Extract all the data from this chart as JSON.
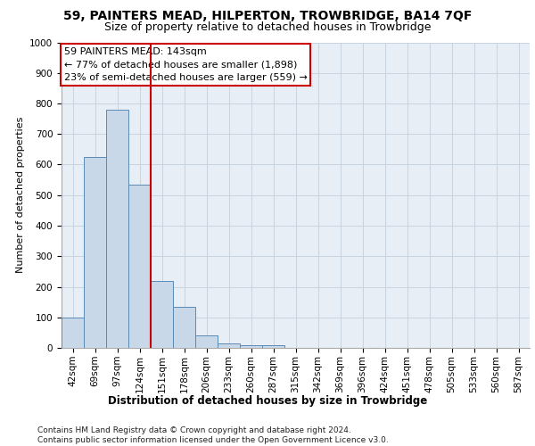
{
  "title1": "59, PAINTERS MEAD, HILPERTON, TROWBRIDGE, BA14 7QF",
  "title2": "Size of property relative to detached houses in Trowbridge",
  "xlabel": "Distribution of detached houses by size in Trowbridge",
  "ylabel": "Number of detached properties",
  "categories": [
    "42sqm",
    "69sqm",
    "97sqm",
    "124sqm",
    "151sqm",
    "178sqm",
    "206sqm",
    "233sqm",
    "260sqm",
    "287sqm",
    "315sqm",
    "342sqm",
    "369sqm",
    "396sqm",
    "424sqm",
    "451sqm",
    "478sqm",
    "505sqm",
    "533sqm",
    "560sqm",
    "587sqm"
  ],
  "values": [
    100,
    625,
    780,
    535,
    220,
    135,
    40,
    15,
    10,
    8,
    0,
    0,
    0,
    0,
    0,
    0,
    0,
    0,
    0,
    0,
    0
  ],
  "bar_color": "#c8d8e8",
  "bar_edge_color": "#5a8ab5",
  "bar_width": 1.0,
  "vline_x": 3.5,
  "vline_color": "#cc0000",
  "annotation_text": "59 PAINTERS MEAD: 143sqm\n← 77% of detached houses are smaller (1,898)\n23% of semi-detached houses are larger (559) →",
  "annotation_box_color": "#ffffff",
  "annotation_box_edge": "#cc0000",
  "ylim": [
    0,
    1000
  ],
  "yticks": [
    0,
    100,
    200,
    300,
    400,
    500,
    600,
    700,
    800,
    900,
    1000
  ],
  "grid_color": "#c8d4e0",
  "bg_color": "#e8eef5",
  "footer": "Contains HM Land Registry data © Crown copyright and database right 2024.\nContains public sector information licensed under the Open Government Licence v3.0.",
  "title1_fontsize": 10,
  "title2_fontsize": 9,
  "xlabel_fontsize": 8.5,
  "ylabel_fontsize": 8,
  "tick_fontsize": 7.5,
  "annotation_fontsize": 8,
  "footer_fontsize": 6.5
}
